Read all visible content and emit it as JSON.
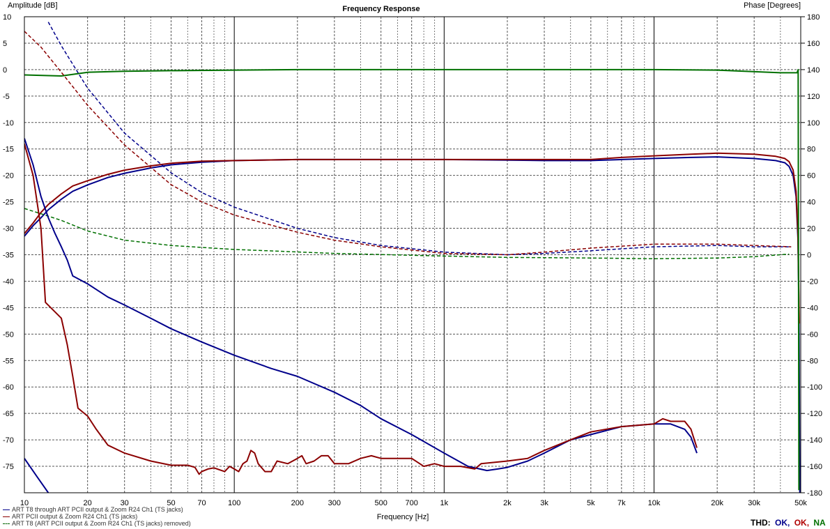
{
  "chart_data": {
    "type": "line",
    "title": "Frequency Response",
    "xlabel": "Frequency [Hz]",
    "ylabel_left": "Amplitude [dB]",
    "ylabel_right": "Phase [Degrees]",
    "x_scale": "log",
    "xlim": [
      10,
      50000
    ],
    "ylim_left": [
      -80,
      10
    ],
    "ylim_right": [
      -180,
      180
    ],
    "grid": true,
    "x_tick_labels": [
      {
        "value": 10,
        "label": "10"
      },
      {
        "value": 20,
        "label": "20"
      },
      {
        "value": 30,
        "label": "30"
      },
      {
        "value": 50,
        "label": "50"
      },
      {
        "value": 70,
        "label": "70"
      },
      {
        "value": 100,
        "label": "100"
      },
      {
        "value": 200,
        "label": "200"
      },
      {
        "value": 300,
        "label": "300"
      },
      {
        "value": 500,
        "label": "500"
      },
      {
        "value": 700,
        "label": "700"
      },
      {
        "value": 1000,
        "label": "1k"
      },
      {
        "value": 2000,
        "label": "2k"
      },
      {
        "value": 3000,
        "label": "3k"
      },
      {
        "value": 5000,
        "label": "5k"
      },
      {
        "value": 7000,
        "label": "7k"
      },
      {
        "value": 10000,
        "label": "10k"
      },
      {
        "value": 20000,
        "label": "20k"
      },
      {
        "value": 30000,
        "label": "30k"
      },
      {
        "value": 50000,
        "label": "50k"
      }
    ],
    "y_left_ticks": [
      10,
      5,
      0,
      -5,
      -10,
      -15,
      -20,
      -25,
      -30,
      -35,
      -40,
      -45,
      -50,
      -55,
      -60,
      -65,
      -70,
      -75
    ],
    "y_right_ticks": [
      180,
      160,
      140,
      120,
      100,
      80,
      60,
      40,
      20,
      0,
      -20,
      -40,
      -60,
      -80,
      -100,
      -120,
      -140,
      -160,
      -180
    ],
    "legend": {
      "placement": "bottom-left",
      "entries": [
        {
          "label": "ART T8 through ART PCII output & Zoom R24 Ch1 (TS jacks)",
          "color": "#00008b"
        },
        {
          "label": "ART PCII output & Zoom R24 Ch1 (TS jacks)",
          "color": "#8b0000"
        },
        {
          "label": "ART T8 (ART PCII output & Zoom R24 Ch1 (TS jacks) removed)",
          "color": "#006400"
        }
      ]
    },
    "thd_label": "THD:",
    "thd_status": [
      {
        "text": "OK,",
        "color": "#00008b"
      },
      {
        "text": "OK,",
        "color": "#b00000"
      },
      {
        "text": "NA",
        "color": "#007000"
      }
    ],
    "series": [
      {
        "color": "#00008b",
        "axis": "left",
        "style": "solid",
        "width": 2,
        "points": [
          [
            10,
            -31.5
          ],
          [
            11,
            -29.5
          ],
          [
            12,
            -28
          ],
          [
            13,
            -26.5
          ],
          [
            15,
            -24.5
          ],
          [
            17,
            -23
          ],
          [
            20,
            -21.8
          ],
          [
            25,
            -20.4
          ],
          [
            30,
            -19.6
          ],
          [
            40,
            -18.6
          ],
          [
            50,
            -18
          ],
          [
            70,
            -17.5
          ],
          [
            100,
            -17.2
          ],
          [
            200,
            -17
          ],
          [
            500,
            -17
          ],
          [
            1000,
            -17
          ],
          [
            2000,
            -17.1
          ],
          [
            3000,
            -17.2
          ],
          [
            5000,
            -17.2
          ],
          [
            7000,
            -17
          ],
          [
            10000,
            -16.8
          ],
          [
            15000,
            -16.6
          ],
          [
            20000,
            -16.5
          ],
          [
            30000,
            -16.8
          ],
          [
            38000,
            -17.2
          ],
          [
            42000,
            -17.6
          ],
          [
            44000,
            -18.3
          ],
          [
            46000,
            -20
          ],
          [
            47500,
            -24
          ],
          [
            48500,
            -32
          ],
          [
            49000,
            -45
          ],
          [
            49500,
            -80
          ]
        ]
      },
      {
        "color": "#8b0000",
        "axis": "left",
        "style": "solid",
        "width": 2,
        "points": [
          [
            10,
            -31
          ],
          [
            11,
            -29
          ],
          [
            12,
            -27
          ],
          [
            13,
            -25.5
          ],
          [
            15,
            -23.5
          ],
          [
            17,
            -22
          ],
          [
            20,
            -21
          ],
          [
            25,
            -19.8
          ],
          [
            30,
            -19
          ],
          [
            40,
            -18.2
          ],
          [
            50,
            -17.7
          ],
          [
            70,
            -17.3
          ],
          [
            100,
            -17.2
          ],
          [
            200,
            -17
          ],
          [
            500,
            -17
          ],
          [
            1000,
            -17
          ],
          [
            2000,
            -17
          ],
          [
            3000,
            -17
          ],
          [
            5000,
            -17
          ],
          [
            7000,
            -16.6
          ],
          [
            10000,
            -16.3
          ],
          [
            15000,
            -16
          ],
          [
            20000,
            -15.8
          ],
          [
            30000,
            -16
          ],
          [
            38000,
            -16.4
          ],
          [
            42000,
            -16.8
          ],
          [
            44000,
            -17.4
          ],
          [
            46000,
            -19
          ],
          [
            47500,
            -23
          ],
          [
            48500,
            -31
          ],
          [
            49200,
            -48
          ]
        ]
      },
      {
        "color": "#007000",
        "axis": "left",
        "style": "solid",
        "width": 2,
        "points": [
          [
            10,
            -1
          ],
          [
            15,
            -1.2
          ],
          [
            20,
            -0.5
          ],
          [
            30,
            -0.3
          ],
          [
            50,
            -0.2
          ],
          [
            100,
            -0.1
          ],
          [
            200,
            0
          ],
          [
            1000,
            0
          ],
          [
            5000,
            0
          ],
          [
            10000,
            0
          ],
          [
            20000,
            -0.1
          ],
          [
            40000,
            -0.6
          ],
          [
            48000,
            -0.6
          ],
          [
            48600,
            0
          ],
          [
            49000,
            -79.5
          ]
        ]
      },
      {
        "color": "#00008b",
        "axis": "right",
        "style": "dashed",
        "width": 1.5,
        "points": [
          [
            13,
            176
          ],
          [
            15,
            158
          ],
          [
            20,
            126
          ],
          [
            30,
            92
          ],
          [
            50,
            62
          ],
          [
            70,
            47
          ],
          [
            100,
            36
          ],
          [
            200,
            20
          ],
          [
            300,
            13
          ],
          [
            500,
            7
          ],
          [
            1000,
            2
          ],
          [
            2000,
            0
          ],
          [
            3000,
            1
          ],
          [
            5000,
            3
          ],
          [
            10000,
            6
          ],
          [
            20000,
            7
          ],
          [
            30000,
            6
          ],
          [
            45000,
            6
          ]
        ]
      },
      {
        "color": "#8b0000",
        "axis": "right",
        "style": "dashed",
        "width": 1.5,
        "points": [
          [
            10,
            169
          ],
          [
            12,
            157
          ],
          [
            15,
            138
          ],
          [
            20,
            113
          ],
          [
            30,
            83
          ],
          [
            50,
            53
          ],
          [
            70,
            40
          ],
          [
            100,
            30
          ],
          [
            200,
            17
          ],
          [
            300,
            11
          ],
          [
            500,
            6
          ],
          [
            1000,
            1
          ],
          [
            2000,
            0
          ],
          [
            3000,
            2
          ],
          [
            5000,
            5
          ],
          [
            10000,
            8
          ],
          [
            20000,
            8
          ],
          [
            30000,
            7
          ],
          [
            45000,
            6
          ]
        ]
      },
      {
        "color": "#007000",
        "axis": "right",
        "style": "dashed",
        "width": 1.5,
        "points": [
          [
            10,
            35
          ],
          [
            12,
            31
          ],
          [
            15,
            26
          ],
          [
            20,
            18
          ],
          [
            30,
            11
          ],
          [
            50,
            7
          ],
          [
            100,
            4
          ],
          [
            300,
            1
          ],
          [
            1000,
            -1
          ],
          [
            2000,
            -2
          ],
          [
            5000,
            -2.5
          ],
          [
            10000,
            -3
          ],
          [
            20000,
            -2.5
          ],
          [
            30000,
            -1.5
          ],
          [
            40000,
            0
          ],
          [
            44000,
            0.5
          ]
        ]
      },
      {
        "color": "#00008b",
        "axis": "left",
        "style": "solid",
        "width": 2,
        "points": [
          [
            10,
            -13
          ],
          [
            11,
            -18
          ],
          [
            12,
            -24
          ],
          [
            13,
            -28
          ],
          [
            14,
            -31
          ],
          [
            15,
            -33.5
          ],
          [
            16,
            -36
          ],
          [
            17,
            -39
          ],
          [
            20,
            -40.5
          ],
          [
            25,
            -43
          ],
          [
            30,
            -44.5
          ],
          [
            40,
            -47
          ],
          [
            50,
            -49
          ],
          [
            70,
            -51.5
          ],
          [
            100,
            -54
          ],
          [
            150,
            -56.5
          ],
          [
            200,
            -58
          ],
          [
            300,
            -61
          ],
          [
            400,
            -63.5
          ],
          [
            500,
            -66
          ],
          [
            700,
            -69
          ],
          [
            1000,
            -72.5
          ],
          [
            1300,
            -75
          ],
          [
            1600,
            -75.8
          ],
          [
            1800,
            -75.5
          ],
          [
            2000,
            -75.2
          ],
          [
            2500,
            -74
          ],
          [
            3000,
            -72.5
          ],
          [
            4000,
            -70
          ],
          [
            5000,
            -69
          ],
          [
            7000,
            -67.5
          ],
          [
            10000,
            -67
          ],
          [
            12000,
            -67
          ],
          [
            14000,
            -68
          ],
          [
            15000,
            -69.5
          ],
          [
            16000,
            -72.5
          ]
        ]
      },
      {
        "color": "#8b0000",
        "axis": "left",
        "style": "solid",
        "width": 2,
        "points": [
          [
            10,
            -14
          ],
          [
            11,
            -20
          ],
          [
            12,
            -30
          ],
          [
            12.6,
            -44
          ],
          [
            15,
            -47
          ],
          [
            16,
            -52
          ],
          [
            17,
            -58
          ],
          [
            18,
            -64
          ],
          [
            20,
            -65.5
          ],
          [
            22,
            -68
          ],
          [
            25,
            -71
          ],
          [
            30,
            -72.5
          ],
          [
            40,
            -74
          ],
          [
            50,
            -74.8
          ],
          [
            60,
            -74.8
          ],
          [
            65,
            -75.2
          ],
          [
            68,
            -76.5
          ],
          [
            70,
            -76
          ],
          [
            75,
            -75.5
          ],
          [
            80,
            -75.3
          ],
          [
            90,
            -76
          ],
          [
            95,
            -75
          ],
          [
            100,
            -75.5
          ],
          [
            105,
            -76
          ],
          [
            110,
            -74.5
          ],
          [
            115,
            -74
          ],
          [
            120,
            -72
          ],
          [
            125,
            -72.5
          ],
          [
            130,
            -74.5
          ],
          [
            140,
            -76
          ],
          [
            150,
            -76
          ],
          [
            160,
            -74
          ],
          [
            180,
            -74.5
          ],
          [
            200,
            -73.5
          ],
          [
            210,
            -73
          ],
          [
            220,
            -74.5
          ],
          [
            240,
            -74
          ],
          [
            260,
            -73
          ],
          [
            280,
            -73
          ],
          [
            300,
            -74.5
          ],
          [
            350,
            -74.5
          ],
          [
            400,
            -73.5
          ],
          [
            450,
            -73
          ],
          [
            500,
            -73.5
          ],
          [
            600,
            -73.5
          ],
          [
            700,
            -73.5
          ],
          [
            800,
            -75
          ],
          [
            900,
            -74.5
          ],
          [
            1000,
            -75
          ],
          [
            1200,
            -75
          ],
          [
            1400,
            -75.5
          ],
          [
            1500,
            -74.5
          ],
          [
            2000,
            -74
          ],
          [
            2500,
            -73.5
          ],
          [
            3000,
            -72
          ],
          [
            4000,
            -70
          ],
          [
            5000,
            -68.5
          ],
          [
            7000,
            -67.5
          ],
          [
            10000,
            -67
          ],
          [
            11000,
            -66
          ],
          [
            12000,
            -66.5
          ],
          [
            13000,
            -66.5
          ],
          [
            14000,
            -66.5
          ],
          [
            15000,
            -68
          ],
          [
            16000,
            -71.5
          ]
        ]
      },
      {
        "color": "#00008b",
        "axis": "left",
        "style": "solid",
        "width": 2,
        "points": [
          [
            10,
            -73.5
          ],
          [
            11.5,
            -77
          ],
          [
            13,
            -80
          ]
        ]
      }
    ]
  }
}
